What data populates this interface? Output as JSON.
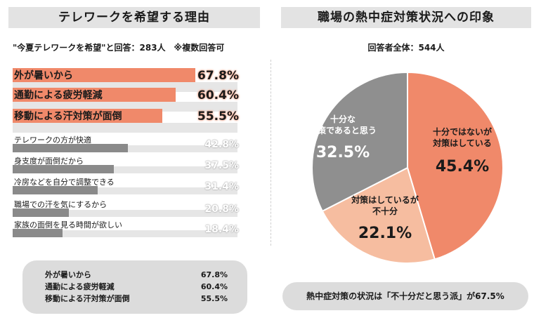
{
  "left_panel": {
    "title": "テレワークを希望する理由",
    "subtitle": "\"今夏テレワークを希望\"と回答：283人　※複数回答可"
  },
  "right_panel": {
    "title": "職場の熱中症対策状況への印象",
    "subtitle": "回答者全体：544人"
  },
  "summary": [
    {
      "label": "外が暑いから",
      "value": "67.8%"
    },
    {
      "label": "通勤による疲労軽減",
      "value": "60.4%"
    },
    {
      "label": "移動による汗対策が面倒",
      "value": "55.5%"
    }
  ],
  "footer": "熱中症対策の状況は「不十分だと思う派」が67.5%",
  "colors": {
    "highlight": "#f0896a",
    "bar_gray": "#8a8a8a",
    "track": "#e6e6e6",
    "pie_mid": "#f6bda0",
    "pie_gray": "#8f8f8f"
  },
  "chart_data": [
    {
      "type": "bar",
      "orientation": "horizontal",
      "unit": "%",
      "categories": [
        "外が暑いから",
        "通勤による疲労軽減",
        "移動による汗対策が面倒",
        "テレワークの方が快適",
        "身支度が面倒だから",
        "冷房などを自分で調整できる",
        "職場での汗を気にするから",
        "家族の面倒を見る時間が欲しい"
      ],
      "values": [
        67.8,
        60.4,
        55.5,
        42.8,
        37.5,
        31.4,
        20.8,
        18.4
      ],
      "value_labels": [
        "67.8%",
        "60.4%",
        "55.5%",
        "42.8%",
        "37.5%",
        "31.4%",
        "20.8%",
        "18.4%"
      ],
      "highlighted": [
        true,
        true,
        true,
        false,
        false,
        false,
        false,
        false
      ],
      "xlim": [
        0,
        100
      ]
    },
    {
      "type": "pie",
      "slices": [
        {
          "label_lines": [
            "十分ではないが",
            "対策はしている"
          ],
          "value": 45.4,
          "value_label": "45.4%",
          "color": "#f0896a"
        },
        {
          "label_lines": [
            "対策はしているが",
            "不十分"
          ],
          "value": 22.1,
          "value_label": "22.1%",
          "color": "#f6bda0"
        },
        {
          "label_lines": [
            "十分な",
            "対策であると思う"
          ],
          "value": 32.5,
          "value_label": "32.5%",
          "color": "#8f8f8f"
        }
      ]
    }
  ]
}
